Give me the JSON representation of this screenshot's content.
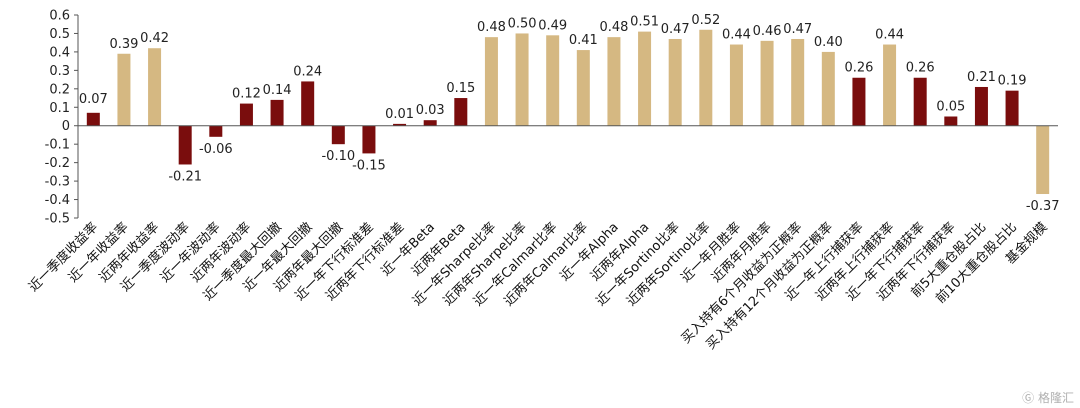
{
  "chart_data": {
    "type": "bar",
    "title": "",
    "xlabel": "",
    "ylabel": "",
    "ylim": [
      -0.5,
      0.6
    ],
    "yticks": [
      0.6,
      0.5,
      0.4,
      0.3,
      0.2,
      0.1,
      0,
      -0.1,
      -0.2,
      -0.3,
      -0.4,
      -0.5
    ],
    "grid": false,
    "legend": "none",
    "colors": {
      "dark": "#7a0d0d",
      "tan": "#d5b882"
    },
    "categories": [
      "近一季度收益率",
      "近一年收益率",
      "近两年收益率",
      "近一季度波动率",
      "近一年波动率",
      "近两年波动率",
      "近一季度最大回撤",
      "近一年最大回撤",
      "近两年最大回撤",
      "近一年下行标准差",
      "近两年下行标准差",
      "近一年Beta",
      "近两年Beta",
      "近一年Sharpe比率",
      "近两年Sharpe比率",
      "近一年Calmar比率",
      "近两年Calmar比率",
      "近一年Alpha",
      "近两年Alpha",
      "近一年Sortino比率",
      "近两年Sortino比率",
      "近一年月胜率",
      "近两年月胜率",
      "买入持有6个月收益为正概率",
      "买入持有12个月收益为正概率",
      "近一年上行捕获率",
      "近两年上行捕获率",
      "近一年下行捕获率",
      "近两年下行捕获率",
      "前5大重仓股占比",
      "前10大重仓股占比",
      "基金规模"
    ],
    "values": [
      0.07,
      0.39,
      0.42,
      -0.21,
      -0.06,
      0.12,
      0.14,
      0.24,
      -0.1,
      -0.15,
      0.01,
      0.03,
      0.15,
      0.48,
      0.5,
      0.49,
      0.41,
      0.48,
      0.51,
      0.47,
      0.52,
      0.44,
      0.46,
      0.47,
      0.4,
      0.26,
      0.44,
      0.26,
      0.05,
      0.21,
      0.19,
      -0.37
    ],
    "labels": [
      "0.07",
      "0.39",
      "0.42",
      "-0.21",
      "-0.06",
      "0.12",
      "0.14",
      "0.24",
      "-0.10",
      "-0.15",
      "0.01",
      "0.03",
      "0.15",
      "0.48",
      "0.50",
      "0.49",
      "0.41",
      "0.48",
      "0.51",
      "0.47",
      "0.52",
      "0.44",
      "0.46",
      "0.47",
      "0.40",
      "0.26",
      "0.44",
      "0.26",
      "0.05",
      "0.21",
      "0.19",
      "-0.37"
    ],
    "bar_colors": [
      "dark",
      "tan",
      "tan",
      "dark",
      "dark",
      "dark",
      "dark",
      "dark",
      "dark",
      "dark",
      "dark",
      "dark",
      "dark",
      "tan",
      "tan",
      "tan",
      "tan",
      "tan",
      "tan",
      "tan",
      "tan",
      "tan",
      "tan",
      "tan",
      "tan",
      "dark",
      "tan",
      "dark",
      "dark",
      "dark",
      "dark",
      "tan"
    ]
  },
  "watermark": "格隆汇"
}
